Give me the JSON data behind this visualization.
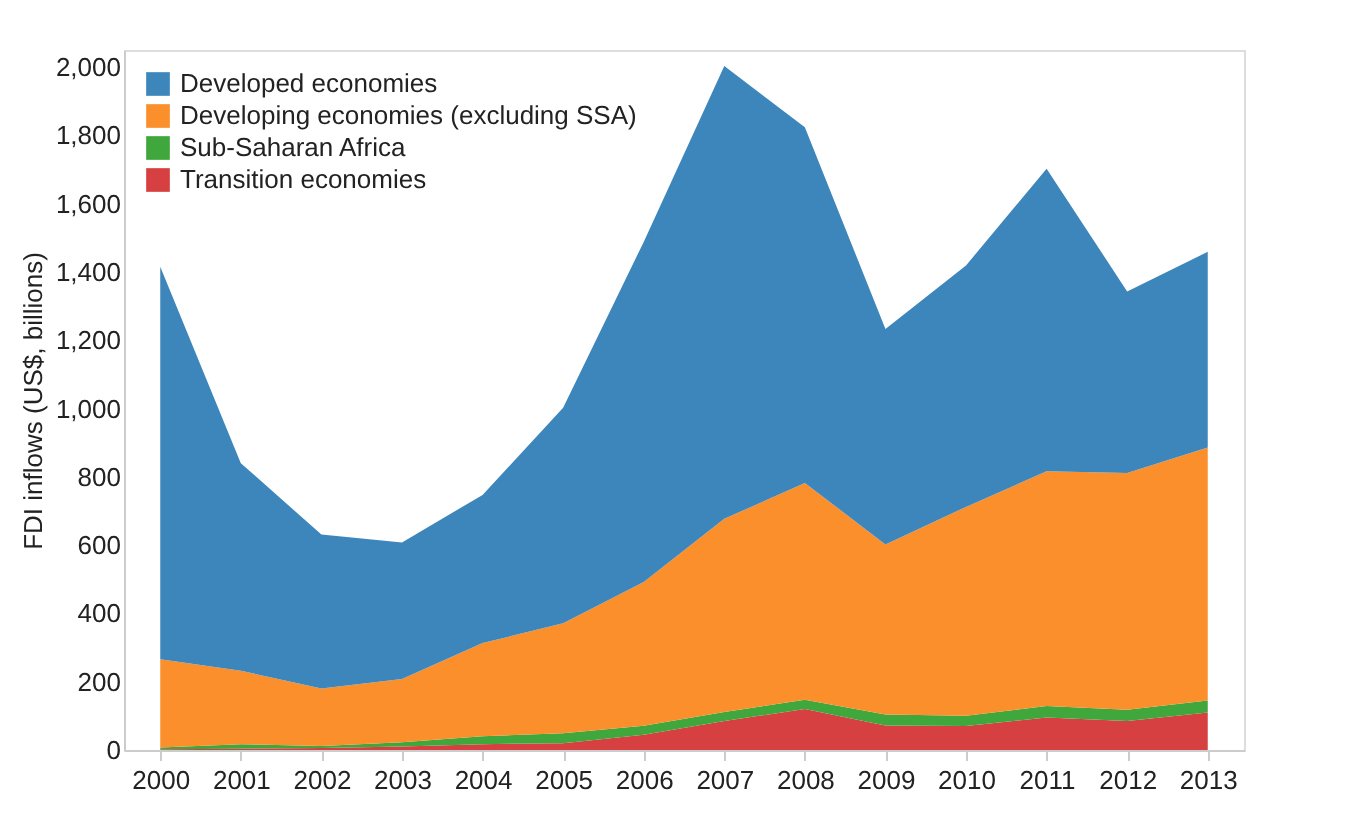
{
  "chart_data": {
    "type": "area",
    "stacked": true,
    "ylabel": "FDI inflows (US$, billions)",
    "categories": [
      "2000",
      "2001",
      "2002",
      "2003",
      "2004",
      "2005",
      "2006",
      "2007",
      "2008",
      "2009",
      "2010",
      "2011",
      "2012",
      "2013"
    ],
    "series": [
      {
        "name": "Transition economies",
        "color": "#d64040",
        "values": [
          2,
          4,
          6,
          10,
          17,
          20,
          45,
          85,
          120,
          72,
          70,
          95,
          85,
          110
        ]
      },
      {
        "name": "Sub-Saharan Africa",
        "color": "#3fa73c",
        "values": [
          5,
          13,
          6,
          13,
          23,
          29,
          26,
          26,
          27,
          32,
          30,
          34,
          33,
          35
        ]
      },
      {
        "name": "Developing economies (excluding SSA)",
        "color": "#fa8f2c",
        "values": [
          259,
          215,
          168,
          185,
          273,
          322,
          421,
          566,
          635,
          498,
          612,
          687,
          693,
          741
        ]
      },
      {
        "name": "Developed economies",
        "color": "#3d86bb",
        "values": [
          1149,
          608,
          451,
          400,
          434,
          631,
          996,
          1326,
          1042,
          631,
          707,
          886,
          532,
          573
        ]
      }
    ],
    "ylim": [
      0,
      2050
    ],
    "yticks": [
      0,
      200,
      400,
      600,
      800,
      {
        "value": 1000,
        "label": "1,000"
      },
      {
        "value": 1200,
        "label": "1,200"
      },
      {
        "value": 1400,
        "label": "1,400"
      },
      {
        "value": 1600,
        "label": "1,600"
      },
      {
        "value": 1800,
        "label": "1,800"
      },
      {
        "value": 2000,
        "label": "2,000"
      }
    ],
    "grid": false,
    "legend": "top left"
  }
}
